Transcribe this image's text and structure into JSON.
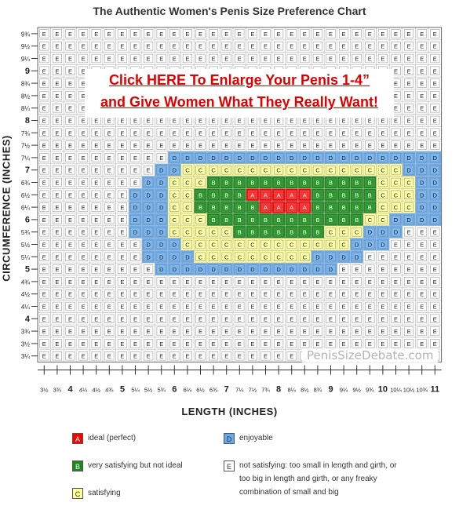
{
  "chart_data": {
    "type": "heatmap",
    "title": "The Authentic Women's Penis Size Preference Chart",
    "xlabel": "LENGTH  (INCHES)",
    "ylabel": "CIRCUMFERENCE (INCHES)",
    "x_ticks": [
      "3½",
      "3¾",
      "4",
      "4¼",
      "4½",
      "4¾",
      "5",
      "5¼",
      "5½",
      "5¾",
      "6",
      "6¼",
      "6½",
      "6¾",
      "7",
      "7¼",
      "7½",
      "7¾",
      "8",
      "8¼",
      "8½",
      "8¾",
      "9",
      "9¼",
      "9½",
      "9¾",
      "10",
      "10¼",
      "10½",
      "10¾",
      "11"
    ],
    "y_ticks": [
      "9¾",
      "9½",
      "9¼",
      "9",
      "8¾",
      "8½",
      "8¼",
      "8",
      "7¾",
      "7½",
      "7¼",
      "7",
      "6¾",
      "6½",
      "6¼",
      "6",
      "5¾",
      "5½",
      "5¼",
      "5",
      "4¾",
      "4½",
      "4¼",
      "4",
      "3¾",
      "3½",
      "3¼"
    ],
    "major_y": [
      "9",
      "8",
      "7",
      "6",
      "5",
      "4"
    ],
    "major_x": [
      "4",
      "5",
      "6",
      "7",
      "8",
      "9",
      "10",
      "11"
    ],
    "grid": true,
    "rows_top_to_bottom": [
      "EEEEEEEEEEEEEEEEEEEEEEEEEEEEEEE",
      "EEEEEEEEEEEEEEEEEEEEEEEEEEEEEEE",
      "EEEEEEEEEEEEEEEEEEEEEEEEEEEEEEE",
      "EEEEEEEEEEEEEEEEEEEEEEEEEEEEEEE",
      "EEEEEEEEEEEEEEEEEEEEEEEEEEEEEEE",
      "EEEEEEEEEEEEEEEEEEEEEEEEEEEEEEE",
      "EEEEEEEEEEEEEEEEEEEEEEEEEEEEEEE",
      "EEEEEEEEEEEEEEEEEEEEEEEEEEEEEEE",
      "EEEEEEEEEEEEEEEEEEEEEEEEEEEEEEE",
      "EEEEEEEEEEEEEEEEEEEEEEEEEEEEEEE",
      "EEEEEEEEEEDDDDDDDDDDDDDDDDDDDDD",
      "EEEEEEEEEDDCCCCCCCCCCCCCCCCCDDD",
      "EEEEEEEEDDCCCBBBBBBBBBBBBBCCCDD",
      "EEEEEEEDDDCCBBBBAAAAABBBBBCCCDD",
      "EEEEEEEDDDCCBBBBBAAAABBBBBCCCDD",
      "EEEEEEEDDDCCCBBBBBBBBBBBBCCDDDD",
      "EEEEEEEDDDCCCCCBBBBBBBCCCDDDEEE",
      "EEEEEEEEDDDCCCCCCCCCCCCCDDDEEEE",
      "EEEEEEEEDDDDCCCCCCCCCDDDDEEEEEE",
      "EEEEEEEEEDDDDDDDDDDDDDDEEEEEEEE",
      "EEEEEEEEEEEEEEEEEEEEEEEEEEEEEEE",
      "EEEEEEEEEEEEEEEEEEEEEEEEEEEEEEE",
      "EEEEEEEEEEEEEEEEEEEEEEEEEEEEEEE",
      "EEEEEEEEEEEEEEEEEEEEEEEEEEEEEEE",
      "EEEEEEEEEEEEEEEEEEEEEEEEEEEEEEE",
      "EEEEEEEEEEEEEEEEEEEEEEEEEEEEEEE",
      "EEEEEEEEEEEEEEEEEEEEEEEEEEEEEEE"
    ],
    "colors": {
      "A": "#ff0000",
      "B": "#1a8a1a",
      "C": "#ffff99",
      "D": "#66aaee",
      "E": "#ffffff"
    },
    "legend": [
      {
        "code": "A",
        "text": "ideal (perfect)"
      },
      {
        "code": "B",
        "text": "very satisfying but not ideal"
      },
      {
        "code": "C",
        "text": "satisfying"
      },
      {
        "code": "D",
        "text": "enjoyable"
      },
      {
        "code": "E",
        "text": "not satisfying: too small in length and girth, or too big in length and girth, or any freaky combination of small and big"
      }
    ]
  },
  "promo": {
    "line1": "Click HERE To Enlarge Your Penis 1-4”",
    "line2": "and Give Women What They Really Want!"
  },
  "watermark": "PenisSizeDebate.com"
}
